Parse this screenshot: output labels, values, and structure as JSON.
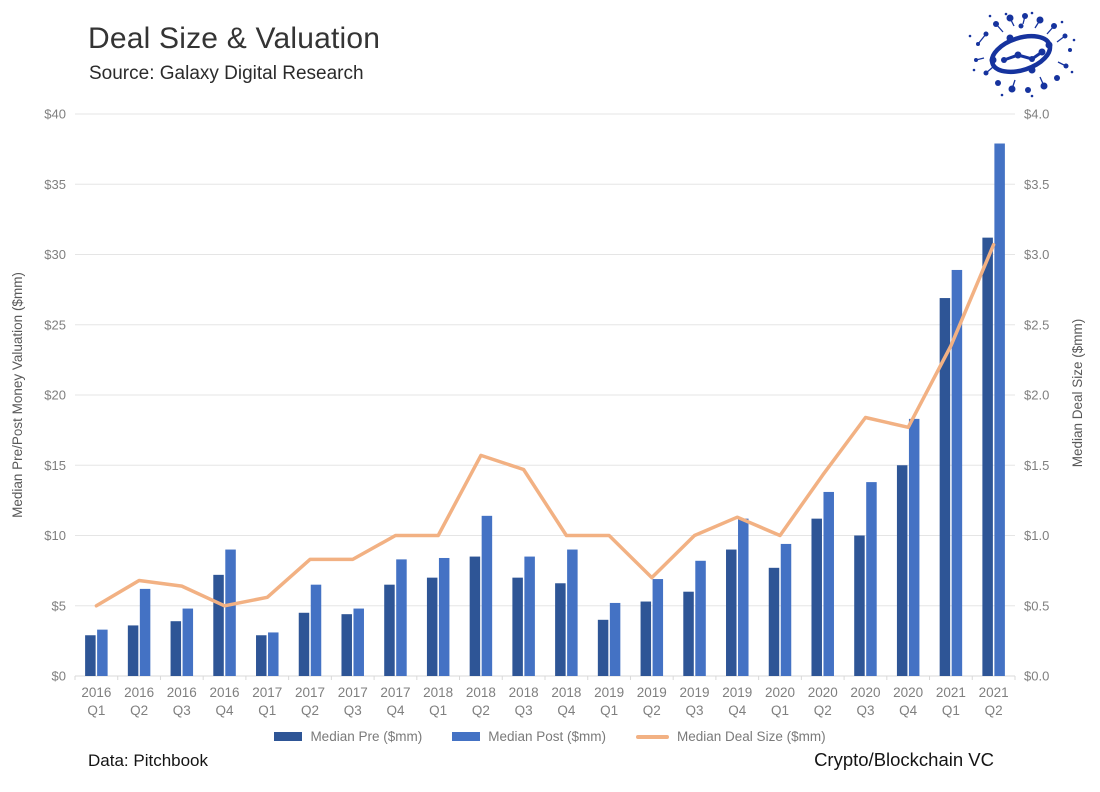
{
  "header": {
    "title": "Deal Size & Valuation",
    "subtitle": "Source: Galaxy Digital Research"
  },
  "logo": {
    "name": "galaxy-digital-logo",
    "color": "#16339E"
  },
  "footer": {
    "left": "Data: Pitchbook",
    "right": "Crypto/Blockchain VC"
  },
  "colors": {
    "median_pre": "#2E5596",
    "median_post": "#4472C4",
    "deal_size_line": "#F2B183",
    "gridline": "#E5E5E5",
    "axis_text": "#7F7F7F",
    "axis_title_text": "#595959"
  },
  "chart_data": {
    "type": "bar",
    "subtype": "grouped bars with overlay line on secondary axis",
    "categories": [
      "2016 Q1",
      "2016 Q2",
      "2016 Q3",
      "2016 Q4",
      "2017 Q1",
      "2017 Q2",
      "2017 Q3",
      "2017 Q4",
      "2018 Q1",
      "2018 Q2",
      "2018 Q3",
      "2018 Q4",
      "2019 Q1",
      "2019 Q2",
      "2019 Q3",
      "2019 Q4",
      "2020 Q1",
      "2020 Q2",
      "2020 Q3",
      "2020 Q4",
      "2021 Q1",
      "2021 Q2"
    ],
    "series": [
      {
        "name": "Median Pre ($mm)",
        "type": "bar",
        "axis": "left",
        "color": "#2E5596",
        "values": [
          2.9,
          3.6,
          3.9,
          7.2,
          2.9,
          4.5,
          4.4,
          6.5,
          7.0,
          8.5,
          7.0,
          6.6,
          4.0,
          5.3,
          6.0,
          9.0,
          7.7,
          11.2,
          10.0,
          15.0,
          26.9,
          31.2
        ]
      },
      {
        "name": "Median Post ($mm)",
        "type": "bar",
        "axis": "left",
        "color": "#4472C4",
        "values": [
          3.3,
          6.2,
          4.8,
          9.0,
          3.1,
          6.5,
          4.8,
          8.3,
          8.4,
          11.4,
          8.5,
          9.0,
          5.2,
          6.9,
          8.2,
          11.2,
          9.4,
          13.1,
          13.8,
          18.3,
          28.9,
          37.9
        ]
      },
      {
        "name": "Median Deal Size ($mm)",
        "type": "line",
        "axis": "right",
        "color": "#F2B183",
        "values": [
          0.5,
          0.68,
          0.64,
          0.5,
          0.56,
          0.83,
          0.83,
          1.0,
          1.0,
          1.57,
          1.47,
          1.0,
          1.0,
          0.7,
          1.0,
          1.13,
          1.0,
          1.43,
          1.84,
          1.77,
          2.35,
          3.07
        ]
      }
    ],
    "left_axis": {
      "label": "Median Pre/Post Money Valuation ($mm)",
      "min": 0,
      "max": 40,
      "step": 5,
      "tick_labels": [
        "$0",
        "$5",
        "$10",
        "$15",
        "$20",
        "$25",
        "$30",
        "$35",
        "$40"
      ]
    },
    "right_axis": {
      "label": "Median Deal Size ($mm)",
      "min": 0,
      "max": 4,
      "step": 0.5,
      "tick_labels": [
        "$0.0",
        "$0.5",
        "$1.0",
        "$1.5",
        "$2.0",
        "$2.5",
        "$3.0",
        "$3.5",
        "$4.0"
      ]
    },
    "grid": true,
    "legend_position": "bottom"
  }
}
